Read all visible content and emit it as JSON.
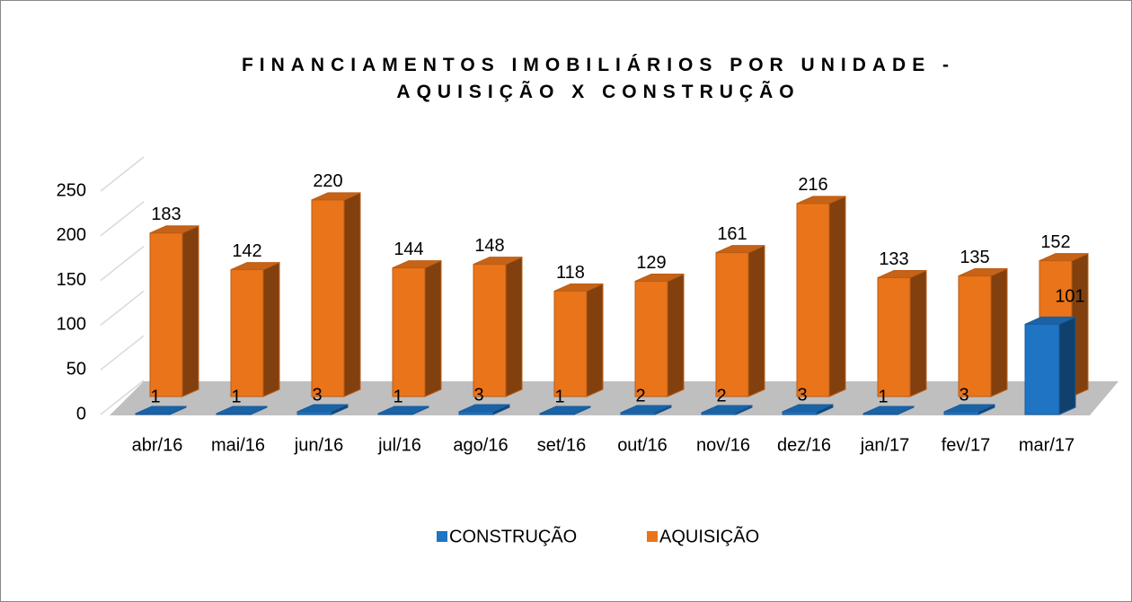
{
  "chart_data": {
    "type": "bar3d",
    "title": "FINANCIAMENTOS IMOBILIÁRIOS POR UNIDADE - AQUISIÇÃO X CONSTRUÇÃO",
    "categories": [
      "abr/16",
      "mai/16",
      "jun/16",
      "jul/16",
      "ago/16",
      "set/16",
      "out/16",
      "nov/16",
      "dez/16",
      "jan/17",
      "fev/17",
      "mar/17"
    ],
    "series": [
      {
        "name": "CONSTRUÇÃO",
        "color": "#1f74c4",
        "values": [
          1,
          1,
          3,
          1,
          3,
          1,
          2,
          2,
          3,
          1,
          3,
          101
        ]
      },
      {
        "name": "AQUISIÇÃO",
        "color": "#ea741a",
        "values": [
          183,
          142,
          220,
          144,
          148,
          118,
          129,
          161,
          216,
          133,
          135,
          152
        ]
      }
    ],
    "ylim": [
      0,
      250
    ],
    "yticks": [
      0,
      50,
      100,
      150,
      200,
      250
    ],
    "legend": "bottom"
  }
}
